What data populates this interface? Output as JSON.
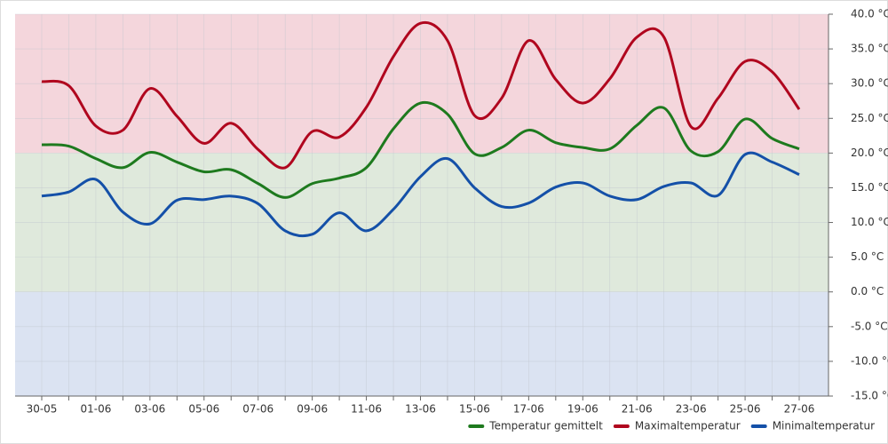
{
  "chart_data": {
    "type": "line",
    "categories": [
      "30-05",
      null,
      "01-06",
      null,
      "03-06",
      null,
      "05-06",
      null,
      "07-06",
      null,
      "09-06",
      null,
      "11-06",
      null,
      "13-06",
      null,
      "15-06",
      null,
      "17-06",
      null,
      "19-06",
      null,
      "21-06",
      null,
      "23-06",
      null,
      "25-06",
      null,
      "27-06"
    ],
    "series": [
      {
        "name": "Temperatur gemittelt",
        "color": "#1e7a1e",
        "values": [
          21.2,
          21.0,
          19.2,
          17.9,
          20.1,
          18.7,
          17.3,
          17.6,
          15.6,
          13.6,
          15.6,
          16.4,
          17.9,
          23.5,
          27.2,
          25.6,
          19.9,
          20.8,
          23.3,
          21.5,
          20.8,
          20.6,
          24.0,
          26.5,
          20.3,
          20.2,
          24.9,
          22.1,
          20.6
        ]
      },
      {
        "name": "Maximaltemperatur",
        "color": "#b0061e",
        "values": [
          30.3,
          29.7,
          23.9,
          23.3,
          29.3,
          25.3,
          21.4,
          24.3,
          20.5,
          17.9,
          23.1,
          22.3,
          26.6,
          33.9,
          38.7,
          36.2,
          25.4,
          27.9,
          36.2,
          30.6,
          27.2,
          30.7,
          36.7,
          36.7,
          23.8,
          27.9,
          33.2,
          31.7,
          26.3
        ]
      },
      {
        "name": "Minimaltemperatur",
        "color": "#1450a8",
        "values": [
          13.8,
          14.4,
          16.2,
          11.5,
          9.8,
          13.2,
          13.3,
          13.8,
          12.7,
          8.8,
          8.3,
          11.4,
          8.8,
          11.9,
          16.6,
          19.2,
          15.0,
          12.3,
          12.8,
          15.1,
          15.7,
          13.8,
          13.3,
          15.2,
          15.7,
          13.9,
          19.8,
          18.7,
          16.9
        ]
      }
    ],
    "ylim": [
      -15,
      40
    ],
    "yticks": [
      {
        "value": 40,
        "label": "40.0 °C"
      },
      {
        "value": 35,
        "label": "35.0 °C"
      },
      {
        "value": 30,
        "label": "30.0 °C"
      },
      {
        "value": 25,
        "label": "25.0 °C"
      },
      {
        "value": 20,
        "label": "20.0 °C"
      },
      {
        "value": 15,
        "label": "15.0 °C"
      },
      {
        "value": 10,
        "label": "10.0 °C"
      },
      {
        "value": 5,
        "label": "5.0 °C"
      },
      {
        "value": 0,
        "label": "0.0 °C"
      },
      {
        "value": -5,
        "label": "-5.0 °C"
      },
      {
        "value": -10,
        "label": "-10.0 °C"
      },
      {
        "value": -15,
        "label": "-15.0 °C"
      }
    ],
    "bands": [
      {
        "from": 20,
        "to": 40,
        "color": "#f4d6dc"
      },
      {
        "from": 0,
        "to": 20,
        "color": "#dfe9dc"
      },
      {
        "from": -15,
        "to": 0,
        "color": "#dbe3f2"
      }
    ],
    "grid": true,
    "legend": "bottom-right"
  }
}
